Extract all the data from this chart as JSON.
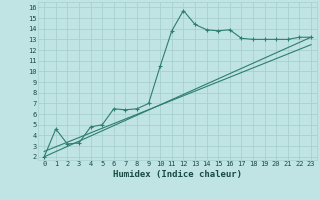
{
  "title": "",
  "xlabel": "Humidex (Indice chaleur)",
  "bg_color": "#c0e4e4",
  "line_color": "#2d7d72",
  "grid_color": "#a8d0d0",
  "xlim_min": -0.5,
  "xlim_max": 23.5,
  "ylim_min": 1.7,
  "ylim_max": 16.5,
  "xticks": [
    0,
    1,
    2,
    3,
    4,
    5,
    6,
    7,
    8,
    9,
    10,
    11,
    12,
    13,
    14,
    15,
    16,
    17,
    18,
    19,
    20,
    21,
    22,
    23
  ],
  "yticks": [
    2,
    3,
    4,
    5,
    6,
    7,
    8,
    9,
    10,
    11,
    12,
    13,
    14,
    15,
    16
  ],
  "line1_x": [
    0,
    1,
    2,
    3,
    4,
    5,
    6,
    7,
    8,
    9,
    10,
    11,
    12,
    13,
    14,
    15,
    16,
    17,
    18,
    19,
    20,
    21,
    22,
    23
  ],
  "line1_y": [
    2.0,
    4.6,
    3.2,
    3.3,
    4.8,
    5.0,
    6.5,
    6.4,
    6.5,
    7.0,
    10.5,
    13.8,
    15.7,
    14.4,
    13.9,
    13.8,
    13.9,
    13.1,
    13.0,
    13.0,
    13.0,
    13.0,
    13.2,
    13.2
  ],
  "line2_x": [
    0,
    23
  ],
  "line2_y": [
    2.0,
    13.2
  ],
  "line3_x": [
    0,
    23
  ],
  "line3_y": [
    2.5,
    12.5
  ],
  "xlabel_fontsize": 6.5,
  "tick_fontsize": 5.0,
  "marker_size": 2.5
}
